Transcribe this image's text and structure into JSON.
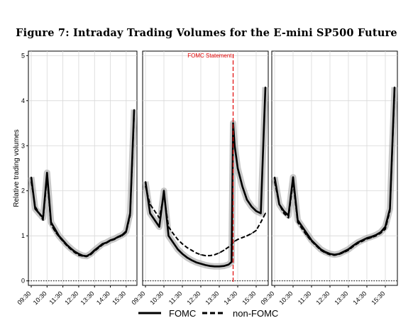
{
  "chart_data": {
    "type": "line",
    "title": "Figure 7: Intraday Trading Volumes for the E-mini SP500 Future",
    "ylabel": "Relative trading volumes",
    "ylim": [
      -0.1,
      5.1
    ],
    "yticks": [
      "0",
      "1",
      "2",
      "3",
      "4",
      "5"
    ],
    "x_tick_labels": [
      "09:30",
      "10:30",
      "11:30",
      "12:30",
      "13:30",
      "14:30",
      "15:30"
    ],
    "legend": {
      "placement": "bottom",
      "entries": [
        "FOMC",
        "non-FOMC"
      ]
    },
    "annotation": {
      "text": "FOMC Statement",
      "x": "14:15",
      "color": "#e00000"
    },
    "grid": true,
    "panels": [
      {
        "x": [
          "09:30",
          "09:45",
          "10:00",
          "10:15",
          "10:30",
          "10:45",
          "11:00",
          "11:15",
          "11:30",
          "11:45",
          "12:00",
          "12:15",
          "12:30",
          "12:45",
          "13:00",
          "13:15",
          "13:30",
          "13:45",
          "14:00",
          "14:15",
          "14:30",
          "14:45",
          "15:00",
          "15:15",
          "15:30",
          "15:45",
          "16:00"
        ],
        "series": [
          {
            "name": "FOMC",
            "values": [
              2.3,
              1.6,
              1.5,
              1.4,
              2.4,
              1.3,
              1.15,
              1.0,
              0.9,
              0.8,
              0.72,
              0.65,
              0.6,
              0.56,
              0.55,
              0.6,
              0.68,
              0.75,
              0.82,
              0.85,
              0.9,
              0.93,
              0.98,
              1.02,
              1.1,
              1.5,
              3.8
            ]
          },
          {
            "name": "non-FOMC",
            "values": [
              2.2,
              1.65,
              1.5,
              1.35,
              2.3,
              1.25,
              1.1,
              0.98,
              0.88,
              0.78,
              0.7,
              0.63,
              0.57,
              0.55,
              0.54,
              0.58,
              0.66,
              0.73,
              0.8,
              0.84,
              0.89,
              0.92,
              0.97,
              1.0,
              1.08,
              1.45,
              3.7
            ]
          }
        ]
      },
      {
        "x": [
          "09:30",
          "09:45",
          "10:00",
          "10:15",
          "10:30",
          "10:45",
          "11:00",
          "11:15",
          "11:30",
          "11:45",
          "12:00",
          "12:15",
          "12:30",
          "12:45",
          "13:00",
          "13:15",
          "13:30",
          "13:45",
          "14:00",
          "14:10",
          "14:15",
          "14:20",
          "14:30",
          "14:45",
          "15:00",
          "15:15",
          "15:30",
          "15:45",
          "16:00"
        ],
        "series": [
          {
            "name": "FOMC",
            "values": [
              2.2,
              1.5,
              1.35,
              1.2,
              2.0,
              1.0,
              0.85,
              0.7,
              0.6,
              0.52,
              0.46,
              0.41,
              0.38,
              0.35,
              0.33,
              0.32,
              0.32,
              0.33,
              0.36,
              0.42,
              3.5,
              3.0,
              2.5,
              2.1,
              1.8,
              1.65,
              1.55,
              1.5,
              4.3
            ]
          },
          {
            "name": "non-FOMC",
            "values": [
              2.1,
              1.7,
              1.55,
              1.4,
              1.9,
              1.2,
              1.05,
              0.92,
              0.82,
              0.74,
              0.68,
              0.62,
              0.58,
              0.56,
              0.56,
              0.58,
              0.62,
              0.68,
              0.75,
              0.8,
              0.85,
              0.88,
              0.92,
              0.96,
              1.0,
              1.05,
              1.12,
              1.3,
              1.5
            ]
          }
        ]
      },
      {
        "x": [
          "09:30",
          "09:45",
          "10:00",
          "10:15",
          "10:30",
          "10:45",
          "11:00",
          "11:15",
          "11:30",
          "11:45",
          "12:00",
          "12:15",
          "12:30",
          "12:45",
          "13:00",
          "13:15",
          "13:30",
          "13:45",
          "14:00",
          "14:15",
          "14:30",
          "14:45",
          "15:00",
          "15:15",
          "15:30",
          "15:45",
          "16:00"
        ],
        "series": [
          {
            "name": "FOMC",
            "values": [
              2.3,
              1.7,
              1.55,
              1.45,
              2.3,
              1.35,
              1.2,
              1.05,
              0.9,
              0.8,
              0.7,
              0.64,
              0.6,
              0.58,
              0.6,
              0.65,
              0.7,
              0.78,
              0.85,
              0.9,
              0.95,
              0.98,
              1.02,
              1.08,
              1.2,
              1.6,
              4.3
            ]
          },
          {
            "name": "non-FOMC",
            "values": [
              2.2,
              1.7,
              1.5,
              1.4,
              2.2,
              1.3,
              1.15,
              1.0,
              0.88,
              0.78,
              0.68,
              0.62,
              0.58,
              0.57,
              0.59,
              0.63,
              0.68,
              0.76,
              0.83,
              0.88,
              0.93,
              0.96,
              1.0,
              1.06,
              1.15,
              1.55,
              4.2
            ]
          }
        ]
      }
    ]
  }
}
